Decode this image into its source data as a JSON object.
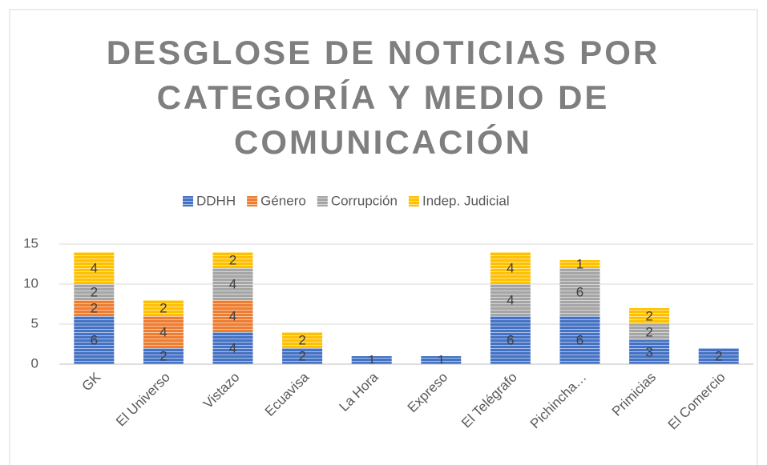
{
  "chart_data": {
    "type": "stacked_bar",
    "title": "DESGLOSE DE NOTICIAS POR CATEGORÍA Y MEDIO DE COMUNICACIÓN",
    "categories": [
      "GK",
      "El Universo",
      "Vistazo",
      "Ecuavisa",
      "La Hora",
      "Expreso",
      "El Telégrafo",
      "Pichincha…",
      "Primicias",
      "El Comercio"
    ],
    "series": [
      {
        "name": "DDHH",
        "color": "#4472c4",
        "values": [
          6,
          2,
          4,
          2,
          1,
          1,
          6,
          6,
          3,
          2
        ]
      },
      {
        "name": "Género",
        "color": "#ed7d31",
        "values": [
          2,
          4,
          4,
          null,
          null,
          null,
          null,
          null,
          null,
          null
        ]
      },
      {
        "name": "Corrupción",
        "color": "#a5a5a5",
        "values": [
          2,
          null,
          4,
          null,
          null,
          null,
          4,
          6,
          2,
          null
        ]
      },
      {
        "name": "Indep. Judicial",
        "color": "#ffc000",
        "values": [
          4,
          2,
          2,
          2,
          null,
          null,
          4,
          1,
          2,
          null
        ]
      }
    ],
    "ylim": [
      0,
      15
    ],
    "yticks": [
      0,
      5,
      10,
      15
    ],
    "grid": true,
    "legend": "top"
  }
}
